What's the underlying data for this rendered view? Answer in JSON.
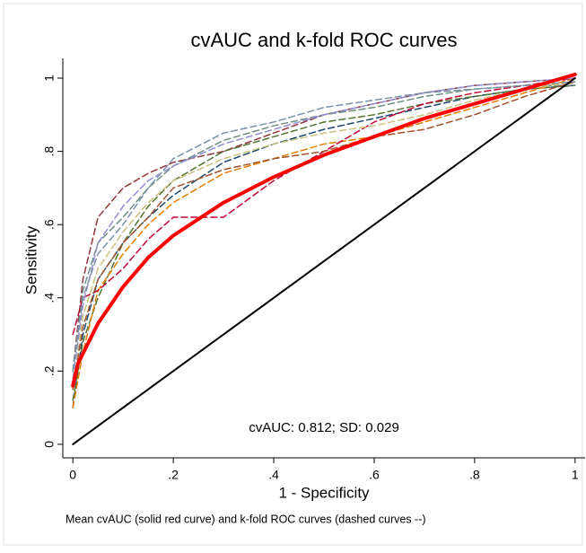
{
  "chart_data": {
    "type": "line",
    "title": "cvAUC and k-fold ROC curves",
    "xlabel": "1 - Specificity",
    "ylabel": "Sensitivity",
    "annotation": "cvAUC: 0.812; SD: 0.029",
    "note": "Mean cvAUC (solid red curve) and k-fold ROC curves (dashed curves --)",
    "xlim": [
      -0.02,
      1.02
    ],
    "ylim": [
      -0.037,
      1.054
    ],
    "xticks": [
      0,
      {
        "value": 0.2,
        "label": ".2"
      },
      {
        "value": 0.4,
        "label": ".4"
      },
      {
        "value": 0.6,
        "label": ".6"
      },
      {
        "value": 0.8,
        "label": ".8"
      },
      1
    ],
    "yticks": [
      0,
      {
        "value": 0.2,
        "label": ".2"
      },
      {
        "value": 0.4,
        "label": ".4"
      },
      {
        "value": 0.6,
        "label": ".6"
      },
      {
        "value": 0.8,
        "label": ".8"
      },
      1
    ],
    "series": [
      {
        "color": "#1a476f",
        "dashed": true,
        "x": [
          0,
          0.02,
          0.05,
          0.1,
          0.15,
          0.2,
          0.3,
          0.4,
          0.5,
          0.6,
          0.7,
          0.8,
          0.9,
          1
        ],
        "values": [
          0.1,
          0.3,
          0.45,
          0.55,
          0.62,
          0.68,
          0.77,
          0.82,
          0.86,
          0.89,
          0.92,
          0.95,
          0.97,
          0.98
        ]
      },
      {
        "color": "#90353b",
        "dashed": true,
        "x": [
          0,
          0.02,
          0.05,
          0.1,
          0.15,
          0.2,
          0.3,
          0.4,
          0.5,
          0.6,
          0.7,
          0.8,
          0.9,
          1
        ],
        "values": [
          0.2,
          0.45,
          0.62,
          0.7,
          0.74,
          0.77,
          0.8,
          0.85,
          0.9,
          0.93,
          0.96,
          0.98,
          0.99,
          1
        ]
      },
      {
        "color": "#55752f",
        "dashed": true,
        "x": [
          0,
          0.02,
          0.05,
          0.1,
          0.15,
          0.2,
          0.3,
          0.4,
          0.5,
          0.6,
          0.7,
          0.8,
          0.9,
          1
        ],
        "values": [
          0.12,
          0.28,
          0.4,
          0.55,
          0.65,
          0.72,
          0.8,
          0.84,
          0.88,
          0.9,
          0.93,
          0.95,
          0.97,
          0.98
        ]
      },
      {
        "color": "#e37e00",
        "dashed": true,
        "x": [
          0,
          0.02,
          0.05,
          0.1,
          0.15,
          0.2,
          0.3,
          0.4,
          0.5,
          0.6,
          0.7,
          0.8,
          0.9,
          1
        ],
        "values": [
          0.1,
          0.25,
          0.42,
          0.52,
          0.6,
          0.66,
          0.74,
          0.78,
          0.82,
          0.84,
          0.88,
          0.92,
          0.96,
          1
        ]
      },
      {
        "color": "#6e8e84",
        "dashed": true,
        "x": [
          0,
          0.02,
          0.05,
          0.1,
          0.15,
          0.2,
          0.3,
          0.4,
          0.5,
          0.6,
          0.7,
          0.8,
          0.9,
          1
        ],
        "values": [
          0.2,
          0.42,
          0.55,
          0.62,
          0.7,
          0.76,
          0.83,
          0.87,
          0.9,
          0.92,
          0.95,
          0.97,
          0.98,
          0.98
        ]
      },
      {
        "color": "#c10534",
        "dashed": true,
        "x": [
          0,
          0.02,
          0.05,
          0.1,
          0.15,
          0.2,
          0.3,
          0.4,
          0.5,
          0.6,
          0.7,
          0.8,
          0.9,
          1
        ],
        "values": [
          0.3,
          0.4,
          0.42,
          0.48,
          0.56,
          0.62,
          0.62,
          0.72,
          0.8,
          0.88,
          0.93,
          0.96,
          0.98,
          1
        ]
      },
      {
        "color": "#938dd2",
        "dashed": true,
        "x": [
          0,
          0.02,
          0.05,
          0.1,
          0.15,
          0.2,
          0.3,
          0.4,
          0.5,
          0.6,
          0.7,
          0.8,
          0.9,
          1
        ],
        "values": [
          0.18,
          0.38,
          0.55,
          0.65,
          0.72,
          0.76,
          0.82,
          0.86,
          0.9,
          0.93,
          0.96,
          0.98,
          0.99,
          1
        ]
      },
      {
        "color": "#cac27e",
        "dashed": true,
        "x": [
          0,
          0.02,
          0.05,
          0.1,
          0.15,
          0.2,
          0.3,
          0.4,
          0.5,
          0.6,
          0.7,
          0.8,
          0.9,
          1
        ],
        "values": [
          0.15,
          0.35,
          0.48,
          0.58,
          0.66,
          0.72,
          0.78,
          0.82,
          0.85,
          0.87,
          0.9,
          0.94,
          0.97,
          0.99
        ]
      },
      {
        "color": "#a0522d",
        "dashed": true,
        "x": [
          0,
          0.02,
          0.05,
          0.1,
          0.15,
          0.2,
          0.3,
          0.4,
          0.5,
          0.6,
          0.7,
          0.8,
          0.9,
          1
        ],
        "values": [
          0.15,
          0.32,
          0.45,
          0.55,
          0.62,
          0.7,
          0.75,
          0.78,
          0.8,
          0.84,
          0.86,
          0.9,
          0.95,
          0.99
        ]
      },
      {
        "color": "#7b92a8",
        "dashed": true,
        "x": [
          0,
          0.02,
          0.05,
          0.1,
          0.15,
          0.2,
          0.3,
          0.4,
          0.5,
          0.6,
          0.7,
          0.8,
          0.9,
          1
        ],
        "values": [
          0.2,
          0.4,
          0.52,
          0.6,
          0.7,
          0.78,
          0.85,
          0.88,
          0.92,
          0.94,
          0.96,
          0.97,
          0.98,
          0.99
        ]
      },
      {
        "color": "#000000",
        "dashed": false,
        "width": 2,
        "x": [
          0,
          1
        ],
        "values": [
          0,
          1
        ]
      },
      {
        "color": "#ff0000",
        "dashed": false,
        "width": 4,
        "x": [
          0,
          0.01,
          0.05,
          0.1,
          0.15,
          0.2,
          0.3,
          0.4,
          0.5,
          0.6,
          0.7,
          0.8,
          0.9,
          1
        ],
        "values": [
          0.16,
          0.22,
          0.33,
          0.43,
          0.51,
          0.57,
          0.66,
          0.73,
          0.79,
          0.84,
          0.89,
          0.93,
          0.97,
          1.01
        ]
      }
    ]
  }
}
